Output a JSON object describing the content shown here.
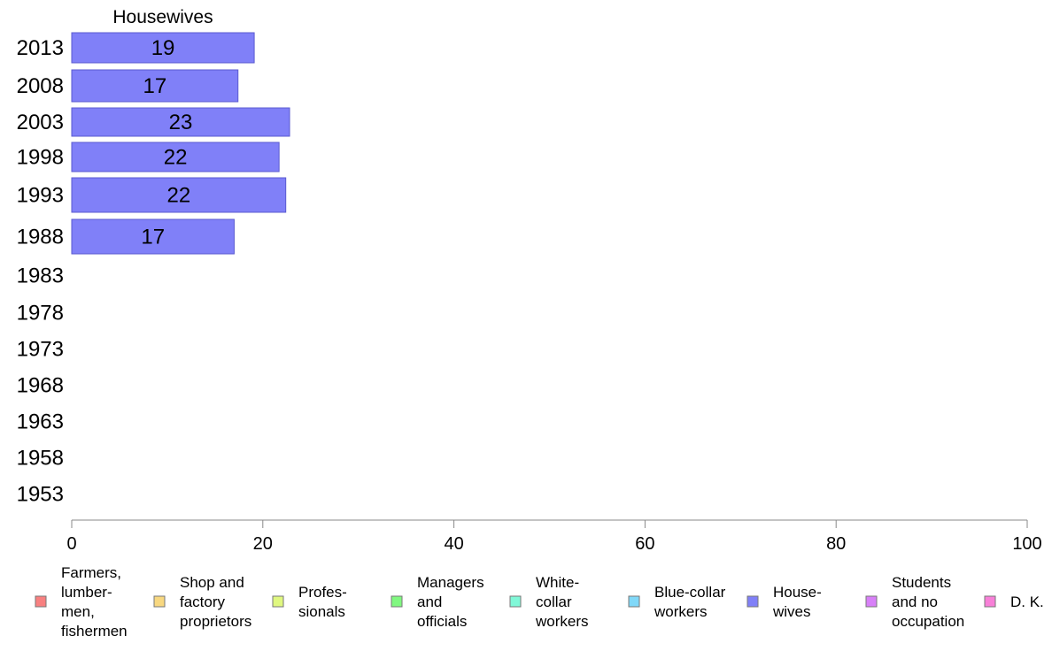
{
  "chart_data": {
    "type": "bar",
    "orientation": "horizontal",
    "title": "Housewives",
    "categories": [
      "2013",
      "2008",
      "2003",
      "1998",
      "1993",
      "1988",
      "1983",
      "1978",
      "1973",
      "1968",
      "1963",
      "1958",
      "1953"
    ],
    "series": [
      {
        "name": "House-\nwives",
        "color": "#8080f8",
        "values": [
          19,
          17,
          23,
          22,
          22,
          17,
          null,
          null,
          null,
          null,
          null,
          null,
          null
        ],
        "plotted_values": [
          19.1,
          17.4,
          22.8,
          21.7,
          22.4,
          17.0,
          null,
          null,
          null,
          null,
          null,
          null,
          null
        ]
      }
    ],
    "xlim": [
      0,
      100
    ],
    "xticks": [
      0,
      20,
      40,
      60,
      80,
      100
    ],
    "grid": false,
    "legend_position": "bottom",
    "legend": [
      {
        "label": "Farmers,\nlumber-\nmen,\nfishermen",
        "color": "#f88080"
      },
      {
        "label": "Shop and\nfactory\nproprietors",
        "color": "#f8d880"
      },
      {
        "label": "Profes-\nsionals",
        "color": "#e0f880"
      },
      {
        "label": "Managers\nand\nofficials",
        "color": "#80f880"
      },
      {
        "label": "White-\ncollar\nworkers",
        "color": "#80f8d8"
      },
      {
        "label": "Blue-collar\nworkers",
        "color": "#80d8f8"
      },
      {
        "label": "House-\nwives",
        "color": "#8080f8"
      },
      {
        "label": "Students\nand no\noccupation",
        "color": "#d880f8"
      },
      {
        "label": "D. K.",
        "color": "#f880d8"
      }
    ]
  }
}
